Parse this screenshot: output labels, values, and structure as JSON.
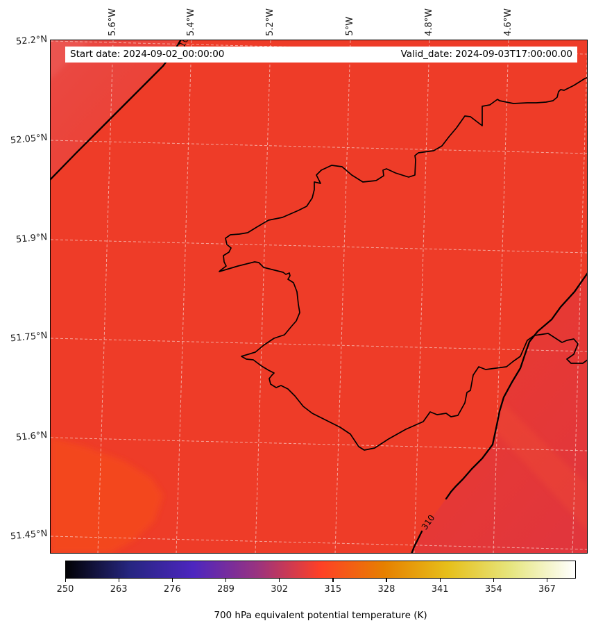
{
  "title_bar": {
    "start_date_text": "Start date: 2024-09-02_00:00:00",
    "valid_date_text": "Valid_date: 2024-09-03T17:00:00.00"
  },
  "chart_data": {
    "type": "heatmap",
    "subtype": "filled-contour-weather-map-with-coastline",
    "title": "",
    "x_axis": {
      "side": "top",
      "tick_labels": [
        "5.6°W",
        "5.4°W",
        "5.2°W",
        "5°W",
        "4.8°W",
        "4.6°W"
      ],
      "tick_values_deg_lon": [
        -5.6,
        -5.4,
        -5.2,
        -5.0,
        -4.8,
        -4.6
      ]
    },
    "y_axis": {
      "side": "left",
      "tick_labels": [
        "52.2°N",
        "52.05°N",
        "51.9°N",
        "51.75°N",
        "51.6°N",
        "51.45°N"
      ],
      "tick_values_deg_lat": [
        52.2,
        52.05,
        51.9,
        51.75,
        51.6,
        51.45
      ]
    },
    "grid": "dashed light gridlines, slightly tilted by map projection",
    "contour_labels": [
      "310",
      "310"
    ],
    "contour_level_K": 310,
    "approx_field_values_K": {
      "interior": "310-315",
      "nw_corner_beyond_contour": "308-310",
      "se_corner_beyond_contour": "307-310"
    },
    "colorbar": {
      "label": "700 hPa equivalent potential temperature (K)",
      "orientation": "horizontal",
      "vmin": 250,
      "vmax": 374,
      "ticks": [
        250,
        263,
        276,
        289,
        302,
        315,
        328,
        341,
        354,
        367
      ],
      "stops": [
        {
          "value": 250.0,
          "color": "#020204"
        },
        {
          "value": 265.5,
          "color": "#262680"
        },
        {
          "value": 281.0,
          "color": "#4d26bf"
        },
        {
          "value": 296.5,
          "color": "#993380"
        },
        {
          "value": 312.0,
          "color": "#ff4026"
        },
        {
          "value": 327.5,
          "color": "#e68000"
        },
        {
          "value": 343.0,
          "color": "#e6bf1a"
        },
        {
          "value": 358.5,
          "color": "#e6e680"
        },
        {
          "value": 374.0,
          "color": "#ffffff"
        }
      ]
    },
    "base_fill_color": "#ee3c28",
    "coastline_color": "#000000",
    "geography_note": "coastline of Wales around Cardigan Bay"
  }
}
